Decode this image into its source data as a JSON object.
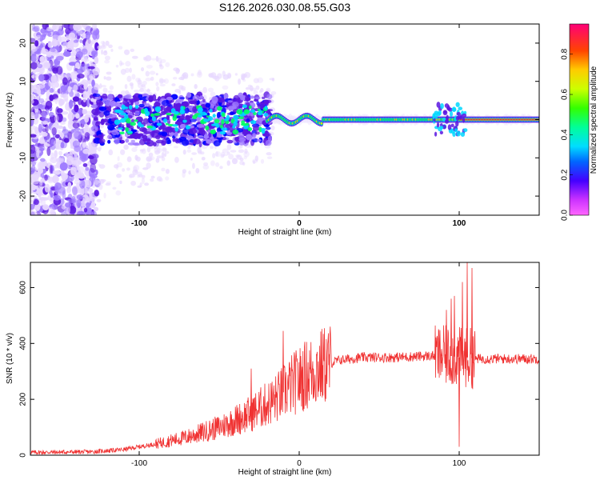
{
  "title": "S126.2026.030.08.55.G03",
  "chart_data": [
    {
      "type": "heatmap",
      "xlabel": "Height of straight line (km)",
      "ylabel": "Frequency (Hz)",
      "xlim": [
        -168,
        150
      ],
      "ylim": [
        -25,
        25
      ],
      "xticks": [
        -100,
        0,
        100
      ],
      "yticks": [
        -20,
        -10,
        0,
        10,
        20
      ],
      "colorbar": {
        "label": "Normalized spectral amplitude",
        "range": [
          0,
          0.95
        ],
        "ticks": [
          0.0,
          0.2,
          0.4,
          0.6,
          0.8
        ]
      },
      "ridge": {
        "description_x": [
          -128,
          -20,
          -20,
          100,
          100,
          150
        ],
        "freq": [
          0,
          0,
          0,
          0,
          0,
          0
        ]
      },
      "colors": [
        "#ffffff",
        "#e6d6ff",
        "#9f7bff",
        "#5a16e0",
        "#0000ff",
        "#00d7ff",
        "#00ff60",
        "#c8ff00",
        "#ffcc00",
        "#ff3000",
        "#ff00a0"
      ]
    },
    {
      "type": "line",
      "xlabel": "Height of straight line (km)",
      "ylabel": "SNR (10 * v/v)",
      "xlim": [
        -168,
        150
      ],
      "ylim": [
        0,
        690
      ],
      "xticks": [
        -100,
        0,
        100
      ],
      "yticks": [
        0,
        200,
        400,
        600
      ],
      "color": "#f03232",
      "envelope": {
        "x": [
          -168,
          -130,
          -110,
          -90,
          -70,
          -50,
          -30,
          -15,
          -5,
          5,
          15,
          25,
          40,
          60,
          80,
          95,
          100,
          105,
          110,
          130,
          150
        ],
        "y": [
          10,
          12,
          20,
          40,
          65,
          100,
          150,
          200,
          250,
          290,
          320,
          340,
          350,
          350,
          355,
          355,
          350,
          350,
          345,
          345,
          345
        ]
      },
      "spikes": [
        {
          "x": -10,
          "y": 445
        },
        {
          "x": -30,
          "y": 310
        },
        {
          "x": 89,
          "y": 380
        },
        {
          "x": 92,
          "y": 520
        },
        {
          "x": 95,
          "y": 560
        },
        {
          "x": 97,
          "y": 570
        },
        {
          "x": 100,
          "y": 30
        },
        {
          "x": 102,
          "y": 620
        },
        {
          "x": 105,
          "y": 690
        },
        {
          "x": 108,
          "y": 670
        }
      ]
    }
  ]
}
